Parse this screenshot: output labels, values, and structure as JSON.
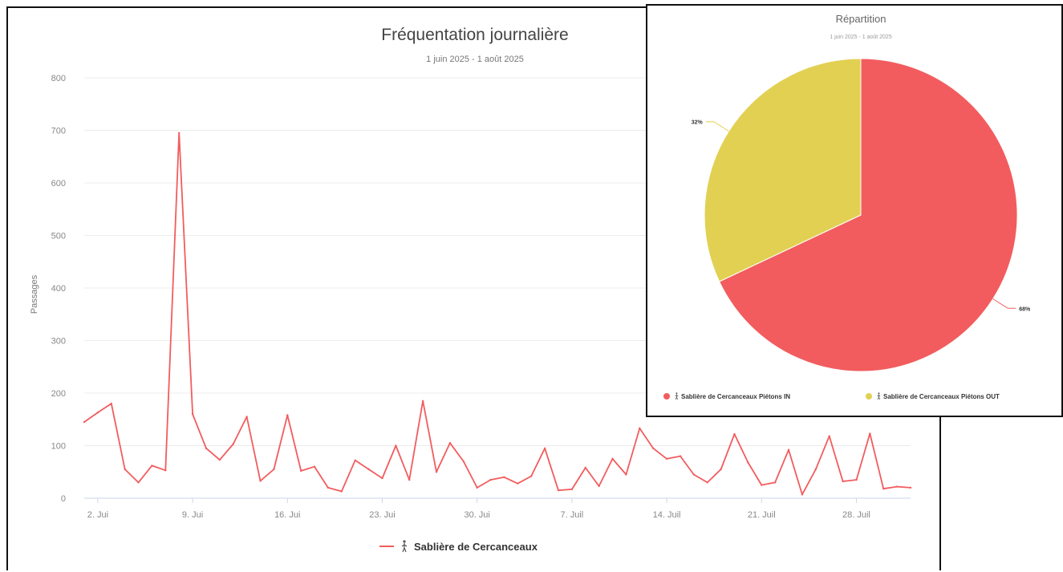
{
  "chart_data": [
    {
      "type": "line",
      "title": "Fréquentation journalière",
      "subtitle": "1 juin 2025 - 1 août 2025",
      "ylabel": "Passages",
      "ylim": [
        0,
        800
      ],
      "yticks": [
        0,
        100,
        200,
        300,
        400,
        500,
        600,
        700,
        800
      ],
      "x_start": "2025-06-01",
      "xtick_labels": [
        "2. Jui",
        "9. Jui",
        "16. Jui",
        "23. Jui",
        "30. Jui",
        "7. Juil",
        "14. Juil",
        "21. Juil",
        "28. Juil"
      ],
      "xtick_days": [
        "2025-06-02",
        "2025-06-09",
        "2025-06-16",
        "2025-06-23",
        "2025-06-30",
        "2025-07-07",
        "2025-07-14",
        "2025-07-21",
        "2025-07-28"
      ],
      "series": [
        {
          "name": "Sablière de Cercanceaux",
          "color": "#f25c5e",
          "x": [
            "2025-06-01",
            "2025-06-02",
            "2025-06-03",
            "2025-06-04",
            "2025-06-05",
            "2025-06-06",
            "2025-06-07",
            "2025-06-08",
            "2025-06-09",
            "2025-06-10",
            "2025-06-11",
            "2025-06-12",
            "2025-06-13",
            "2025-06-14",
            "2025-06-15",
            "2025-06-16",
            "2025-06-17",
            "2025-06-18",
            "2025-06-19",
            "2025-06-20",
            "2025-06-21",
            "2025-06-22",
            "2025-06-23",
            "2025-06-24",
            "2025-06-25",
            "2025-06-26",
            "2025-06-27",
            "2025-06-28",
            "2025-06-29",
            "2025-06-30",
            "2025-07-01",
            "2025-07-02",
            "2025-07-03",
            "2025-07-04",
            "2025-07-05",
            "2025-07-06",
            "2025-07-07",
            "2025-07-08",
            "2025-07-09",
            "2025-07-10",
            "2025-07-11",
            "2025-07-12",
            "2025-07-13",
            "2025-07-14",
            "2025-07-15",
            "2025-07-16",
            "2025-07-17",
            "2025-07-18",
            "2025-07-19",
            "2025-07-20",
            "2025-07-21",
            "2025-07-22",
            "2025-07-23",
            "2025-07-24",
            "2025-07-25",
            "2025-07-26",
            "2025-07-27",
            "2025-07-28",
            "2025-07-29",
            "2025-07-30",
            "2025-07-31",
            "2025-08-01"
          ],
          "values": [
            145,
            163,
            180,
            55,
            30,
            62,
            53,
            695,
            160,
            95,
            73,
            103,
            155,
            33,
            55,
            158,
            52,
            60,
            20,
            13,
            72,
            55,
            38,
            100,
            35,
            185,
            50,
            105,
            70,
            20,
            35,
            40,
            28,
            42,
            95,
            15,
            17,
            58,
            23,
            75,
            45,
            133,
            95,
            75,
            80,
            45,
            30,
            55,
            122,
            68,
            25,
            30,
            92,
            7,
            55,
            118,
            32,
            35,
            123,
            18,
            22,
            20
          ]
        }
      ],
      "legend": {
        "position": "bottom",
        "label": "Sablière de Cercanceaux",
        "icon": "person-walking-icon"
      }
    },
    {
      "type": "pie",
      "title": "Répartition",
      "subtitle": "1 juin 2025 - 1 août 2025",
      "slices": [
        {
          "name": "Sablière de Cercanceaux Piétons IN",
          "value": 68,
          "label": "68%",
          "color": "#f25c5e"
        },
        {
          "name": "Sablière de Cercanceaux Piétons OUT",
          "value": 32,
          "label": "32%",
          "color": "#e2d052"
        }
      ],
      "legend": {
        "position": "bottom",
        "icon": "person-walking-icon"
      }
    }
  ]
}
